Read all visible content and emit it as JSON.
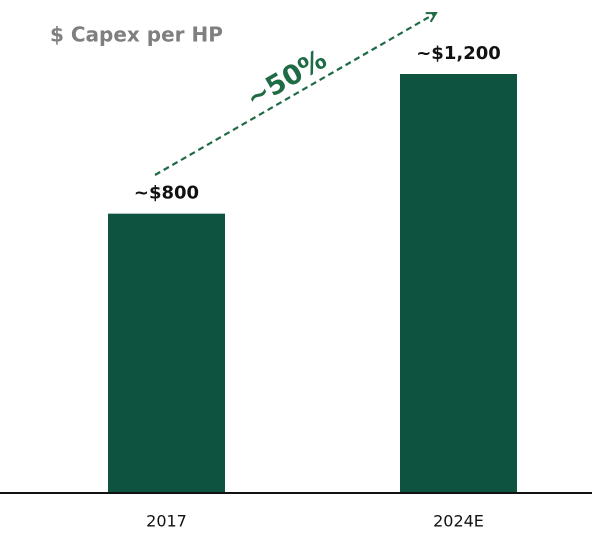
{
  "chart_data": {
    "type": "bar",
    "title": "$ Capex per HP",
    "categories": [
      "2017",
      "2024E"
    ],
    "values": [
      800,
      1200
    ],
    "value_labels": [
      "~$800",
      "~$1,200"
    ],
    "color": "#0e5240",
    "annotation": "~50%"
  }
}
